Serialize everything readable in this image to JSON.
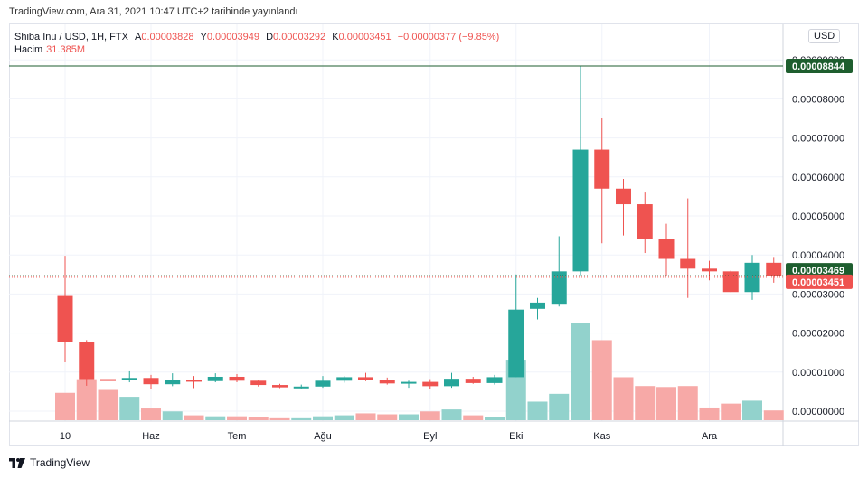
{
  "caption": "TradingView.com, Ara 31, 2021 10:47 UTC+2 tarihinde yayınlandı",
  "legend": {
    "symbol": "Shiba Inu / USD, 1H, FTX",
    "open_key": "A",
    "open": "0.00003828",
    "high_key": "Y",
    "high": "0.00003949",
    "low_key": "D",
    "low": "0.00003292",
    "close_key": "K",
    "close": "0.00003451",
    "change": "−0.00000377 (−9.85%)",
    "volume_key": "Hacim",
    "volume": "31.385M"
  },
  "currency": "USD",
  "footer": "TradingView",
  "chart_data": {
    "type": "candlestick",
    "x_labels": [
      "10",
      "Haz",
      "Tem",
      "Ağu",
      "Eyl",
      "Eki",
      "Kas",
      "Ara"
    ],
    "x_label_index": [
      0,
      4,
      8,
      12,
      17,
      21,
      25,
      30
    ],
    "y_ticks": [
      "0.00000000",
      "0.00001000",
      "0.00002000",
      "0.00003000",
      "0.00004000",
      "0.00005000",
      "0.00006000",
      "0.00007000",
      "0.00008000",
      "0.00009000"
    ],
    "y_tick_values": [
      0,
      1e-05,
      2e-05,
      3e-05,
      4e-05,
      5e-05,
      6e-05,
      7e-05,
      8e-05,
      9e-05
    ],
    "ylim": [
      0,
      9.15e-05
    ],
    "price_labels": [
      {
        "value": 8.844e-05,
        "text": "0.00008844",
        "color": "#1e5e2f"
      },
      {
        "value": 3.469e-05,
        "text": "0.00003469",
        "color": "#1e5e2f"
      },
      {
        "value": 3.451e-05,
        "text": "0.00003451",
        "color": "#ef5350"
      }
    ],
    "up_color": "#26a69a",
    "down_color": "#ef5350",
    "candles": [
      {
        "o": 2.95e-05,
        "h": 3.98e-05,
        "l": 1.25e-05,
        "c": 1.78e-05,
        "v": 0.28
      },
      {
        "o": 1.78e-05,
        "h": 1.82e-05,
        "l": 6.5e-06,
        "c": 8.2e-06,
        "v": 0.42
      },
      {
        "o": 8.2e-06,
        "h": 1.18e-05,
        "l": 7.8e-06,
        "c": 7.9e-06,
        "v": 0.31
      },
      {
        "o": 7.9e-06,
        "h": 1.02e-05,
        "l": 7.4e-06,
        "c": 8.5e-06,
        "v": 0.24
      },
      {
        "o": 8.5e-06,
        "h": 9.3e-06,
        "l": 5.6e-06,
        "c": 6.9e-06,
        "v": 0.12
      },
      {
        "o": 6.9e-06,
        "h": 9.7e-06,
        "l": 6.4e-06,
        "c": 8e-06,
        "v": 0.09
      },
      {
        "o": 8e-06,
        "h": 9e-06,
        "l": 5.9e-06,
        "c": 7.7e-06,
        "v": 0.05
      },
      {
        "o": 7.7e-06,
        "h": 9.7e-06,
        "l": 7.4e-06,
        "c": 8.8e-06,
        "v": 0.04
      },
      {
        "o": 8.8e-06,
        "h": 9.5e-06,
        "l": 7.4e-06,
        "c": 7.8e-06,
        "v": 0.04
      },
      {
        "o": 7.8e-06,
        "h": 8e-06,
        "l": 6.3e-06,
        "c": 6.7e-06,
        "v": 0.03
      },
      {
        "o": 6.7e-06,
        "h": 7e-06,
        "l": 5.9e-06,
        "c": 6.1e-06,
        "v": 0.02
      },
      {
        "o": 6.1e-06,
        "h": 6.8e-06,
        "l": 5.8e-06,
        "c": 6.3e-06,
        "v": 0.02
      },
      {
        "o": 6.3e-06,
        "h": 9e-06,
        "l": 6e-06,
        "c": 7.8e-06,
        "v": 0.04
      },
      {
        "o": 7.8e-06,
        "h": 9e-06,
        "l": 7.3e-06,
        "c": 8.7e-06,
        "v": 0.05
      },
      {
        "o": 8.7e-06,
        "h": 9.8e-06,
        "l": 7.7e-06,
        "c": 8.1e-06,
        "v": 0.07
      },
      {
        "o": 8.1e-06,
        "h": 8.6e-06,
        "l": 6.8e-06,
        "c": 7.1e-06,
        "v": 0.06
      },
      {
        "o": 7.1e-06,
        "h": 7.8e-06,
        "l": 6e-06,
        "c": 7.5e-06,
        "v": 0.06
      },
      {
        "o": 7.5e-06,
        "h": 8.2e-06,
        "l": 5.7e-06,
        "c": 6.4e-06,
        "v": 0.09
      },
      {
        "o": 6.4e-06,
        "h": 9.8e-06,
        "l": 6e-06,
        "c": 8.3e-06,
        "v": 0.11
      },
      {
        "o": 8.3e-06,
        "h": 8.8e-06,
        "l": 7e-06,
        "c": 7.2e-06,
        "v": 0.05
      },
      {
        "o": 7.2e-06,
        "h": 9.3e-06,
        "l": 6.8e-06,
        "c": 8.7e-06,
        "v": 0.03
      },
      {
        "o": 8.7e-06,
        "h": 3.5e-05,
        "l": 8.7e-06,
        "c": 2.6e-05,
        "v": 0.62
      },
      {
        "o": 2.62e-05,
        "h": 2.9e-05,
        "l": 2.35e-05,
        "c": 2.78e-05,
        "v": 0.19
      },
      {
        "o": 2.75e-05,
        "h": 4.48e-05,
        "l": 2.68e-05,
        "c": 3.58e-05,
        "v": 0.27
      },
      {
        "o": 3.58e-05,
        "h": 8.84e-05,
        "l": 3.48e-05,
        "c": 6.7e-05,
        "v": 1.0
      },
      {
        "o": 6.7e-05,
        "h": 7.5e-05,
        "l": 4.3e-05,
        "c": 5.7e-05,
        "v": 0.82
      },
      {
        "o": 5.7e-05,
        "h": 5.95e-05,
        "l": 4.5e-05,
        "c": 5.3e-05,
        "v": 0.44
      },
      {
        "o": 5.3e-05,
        "h": 5.6e-05,
        "l": 4.05e-05,
        "c": 4.4e-05,
        "v": 0.35
      },
      {
        "o": 4.4e-05,
        "h": 4.8e-05,
        "l": 3.45e-05,
        "c": 3.9e-05,
        "v": 0.34
      },
      {
        "o": 3.9e-05,
        "h": 5.45e-05,
        "l": 2.9e-05,
        "c": 3.65e-05,
        "v": 0.35
      },
      {
        "o": 3.65e-05,
        "h": 3.85e-05,
        "l": 3.35e-05,
        "c": 3.58e-05,
        "v": 0.13
      },
      {
        "o": 3.58e-05,
        "h": 3.6e-05,
        "l": 3.05e-05,
        "c": 3.05e-05,
        "v": 0.17
      },
      {
        "o": 3.05e-05,
        "h": 4e-05,
        "l": 2.85e-05,
        "c": 3.8e-05,
        "v": 0.2
      },
      {
        "o": 3.8e-05,
        "h": 3.95e-05,
        "l": 3.29e-05,
        "c": 3.45e-05,
        "v": 0.1
      }
    ]
  }
}
